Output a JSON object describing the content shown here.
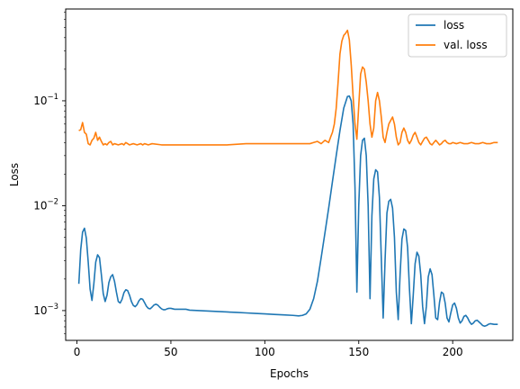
{
  "chart_data": {
    "type": "line",
    "xlabel": "Epochs",
    "ylabel": "Loss",
    "yscale": "log",
    "xlim": [
      -6,
      232
    ],
    "ylim": [
      0.00052,
      0.75
    ],
    "x_ticks": [
      0,
      50,
      100,
      150,
      200
    ],
    "y_ticks": [
      {
        "value": 0.001,
        "base": "10",
        "exp": "−3"
      },
      {
        "value": 0.01,
        "base": "10",
        "exp": "−2"
      },
      {
        "value": 0.1,
        "base": "10",
        "exp": "−1"
      }
    ],
    "grid": false,
    "legend_position": "upper right",
    "series": [
      {
        "name": "loss",
        "color": "#1f77b4",
        "points": [
          [
            1,
            0.0018
          ],
          [
            2,
            0.0038
          ],
          [
            3,
            0.0056
          ],
          [
            4,
            0.0061
          ],
          [
            5,
            0.0049
          ],
          [
            6,
            0.0029
          ],
          [
            7,
            0.0016
          ],
          [
            8,
            0.00125
          ],
          [
            9,
            0.0018
          ],
          [
            10,
            0.0029
          ],
          [
            11,
            0.0034
          ],
          [
            12,
            0.0032
          ],
          [
            13,
            0.0022
          ],
          [
            14,
            0.00145
          ],
          [
            15,
            0.00122
          ],
          [
            16,
            0.0014
          ],
          [
            17,
            0.00185
          ],
          [
            18,
            0.0021
          ],
          [
            19,
            0.0022
          ],
          [
            20,
            0.0019
          ],
          [
            21,
            0.0015
          ],
          [
            22,
            0.00122
          ],
          [
            23,
            0.00118
          ],
          [
            24,
            0.00128
          ],
          [
            25,
            0.00148
          ],
          [
            26,
            0.00158
          ],
          [
            27,
            0.00155
          ],
          [
            28,
            0.0014
          ],
          [
            29,
            0.00122
          ],
          [
            30,
            0.00112
          ],
          [
            31,
            0.00109
          ],
          [
            32,
            0.00114
          ],
          [
            33,
            0.00124
          ],
          [
            34,
            0.0013
          ],
          [
            35,
            0.00128
          ],
          [
            36,
            0.00119
          ],
          [
            37,
            0.0011
          ],
          [
            38,
            0.00105
          ],
          [
            39,
            0.00104
          ],
          [
            40,
            0.00108
          ],
          [
            41,
            0.00113
          ],
          [
            42,
            0.00115
          ],
          [
            43,
            0.00113
          ],
          [
            44,
            0.00108
          ],
          [
            45,
            0.00104
          ],
          [
            46,
            0.00102
          ],
          [
            47,
            0.00102
          ],
          [
            48,
            0.00104
          ],
          [
            49,
            0.00105
          ],
          [
            50,
            0.00105
          ],
          [
            52,
            0.00103
          ],
          [
            55,
            0.00103
          ],
          [
            58,
            0.00103
          ],
          [
            60,
            0.00101
          ],
          [
            65,
            0.001
          ],
          [
            70,
            0.00099
          ],
          [
            75,
            0.00098
          ],
          [
            80,
            0.00097
          ],
          [
            85,
            0.00096
          ],
          [
            90,
            0.00095
          ],
          [
            95,
            0.00094
          ],
          [
            100,
            0.00093
          ],
          [
            105,
            0.00092
          ],
          [
            110,
            0.00091
          ],
          [
            115,
            0.0009
          ],
          [
            118,
            0.00089
          ],
          [
            120,
            0.0009
          ],
          [
            122,
            0.00093
          ],
          [
            124,
            0.00103
          ],
          [
            126,
            0.0013
          ],
          [
            128,
            0.0019
          ],
          [
            130,
            0.0032
          ],
          [
            132,
            0.0055
          ],
          [
            134,
            0.0095
          ],
          [
            136,
            0.017
          ],
          [
            138,
            0.03
          ],
          [
            140,
            0.052
          ],
          [
            142,
            0.085
          ],
          [
            144,
            0.11
          ],
          [
            145,
            0.111
          ],
          [
            146,
            0.1
          ],
          [
            147,
            0.06
          ],
          [
            148,
            0.015
          ],
          [
            149,
            0.0015
          ],
          [
            150,
            0.01
          ],
          [
            151,
            0.03
          ],
          [
            152,
            0.042
          ],
          [
            153,
            0.044
          ],
          [
            154,
            0.03
          ],
          [
            155,
            0.01
          ],
          [
            156,
            0.0013
          ],
          [
            157,
            0.008
          ],
          [
            158,
            0.018
          ],
          [
            159,
            0.022
          ],
          [
            160,
            0.021
          ],
          [
            161,
            0.012
          ],
          [
            162,
            0.0032
          ],
          [
            163,
            0.00085
          ],
          [
            164,
            0.003
          ],
          [
            165,
            0.0085
          ],
          [
            166,
            0.011
          ],
          [
            167,
            0.0115
          ],
          [
            168,
            0.0095
          ],
          [
            169,
            0.005
          ],
          [
            170,
            0.0015
          ],
          [
            171,
            0.00082
          ],
          [
            172,
            0.0022
          ],
          [
            173,
            0.0048
          ],
          [
            174,
            0.006
          ],
          [
            175,
            0.0058
          ],
          [
            176,
            0.004
          ],
          [
            177,
            0.0016
          ],
          [
            178,
            0.00075
          ],
          [
            179,
            0.0014
          ],
          [
            180,
            0.0028
          ],
          [
            181,
            0.0036
          ],
          [
            182,
            0.0033
          ],
          [
            183,
            0.0022
          ],
          [
            184,
            0.0011
          ],
          [
            185,
            0.00075
          ],
          [
            186,
            0.0011
          ],
          [
            187,
            0.0021
          ],
          [
            188,
            0.0025
          ],
          [
            189,
            0.0022
          ],
          [
            190,
            0.0014
          ],
          [
            191,
            0.00085
          ],
          [
            192,
            0.00082
          ],
          [
            193,
            0.0012
          ],
          [
            194,
            0.0015
          ],
          [
            195,
            0.00145
          ],
          [
            196,
            0.00118
          ],
          [
            197,
            0.00085
          ],
          [
            198,
            0.00078
          ],
          [
            199,
            0.00095
          ],
          [
            200,
            0.00113
          ],
          [
            201,
            0.00118
          ],
          [
            202,
            0.00105
          ],
          [
            203,
            0.00085
          ],
          [
            204,
            0.00076
          ],
          [
            205,
            0.0008
          ],
          [
            206,
            0.00088
          ],
          [
            207,
            0.0009
          ],
          [
            208,
            0.00085
          ],
          [
            209,
            0.00078
          ],
          [
            210,
            0.00074
          ],
          [
            211,
            0.00076
          ],
          [
            212,
            0.0008
          ],
          [
            213,
            0.00081
          ],
          [
            214,
            0.00078
          ],
          [
            215,
            0.00075
          ],
          [
            216,
            0.00072
          ],
          [
            217,
            0.00071
          ],
          [
            218,
            0.00072
          ],
          [
            219,
            0.00074
          ],
          [
            220,
            0.00075
          ],
          [
            222,
            0.00074
          ],
          [
            224,
            0.00074
          ]
        ]
      },
      {
        "name": "val. loss",
        "color": "#ff7f0e",
        "points": [
          [
            1,
            0.052
          ],
          [
            2,
            0.053
          ],
          [
            3,
            0.062
          ],
          [
            4,
            0.05
          ],
          [
            5,
            0.048
          ],
          [
            6,
            0.039
          ],
          [
            7,
            0.038
          ],
          [
            8,
            0.042
          ],
          [
            9,
            0.044
          ],
          [
            10,
            0.05
          ],
          [
            11,
            0.042
          ],
          [
            12,
            0.045
          ],
          [
            13,
            0.041
          ],
          [
            14,
            0.038
          ],
          [
            15,
            0.039
          ],
          [
            16,
            0.038
          ],
          [
            17,
            0.04
          ],
          [
            18,
            0.041
          ],
          [
            19,
            0.038
          ],
          [
            20,
            0.039
          ],
          [
            22,
            0.038
          ],
          [
            24,
            0.039
          ],
          [
            25,
            0.038
          ],
          [
            26,
            0.04
          ],
          [
            27,
            0.039
          ],
          [
            28,
            0.038
          ],
          [
            30,
            0.039
          ],
          [
            32,
            0.038
          ],
          [
            34,
            0.039
          ],
          [
            35,
            0.038
          ],
          [
            36,
            0.039
          ],
          [
            38,
            0.038
          ],
          [
            40,
            0.039
          ],
          [
            45,
            0.038
          ],
          [
            50,
            0.038
          ],
          [
            60,
            0.038
          ],
          [
            70,
            0.038
          ],
          [
            80,
            0.038
          ],
          [
            90,
            0.039
          ],
          [
            100,
            0.039
          ],
          [
            110,
            0.039
          ],
          [
            120,
            0.039
          ],
          [
            124,
            0.039
          ],
          [
            126,
            0.04
          ],
          [
            128,
            0.041
          ],
          [
            130,
            0.039
          ],
          [
            132,
            0.042
          ],
          [
            134,
            0.04
          ],
          [
            135,
            0.045
          ],
          [
            136,
            0.05
          ],
          [
            137,
            0.06
          ],
          [
            138,
            0.085
          ],
          [
            139,
            0.15
          ],
          [
            140,
            0.28
          ],
          [
            141,
            0.37
          ],
          [
            142,
            0.42
          ],
          [
            143,
            0.44
          ],
          [
            144,
            0.47
          ],
          [
            145,
            0.38
          ],
          [
            146,
            0.22
          ],
          [
            147,
            0.11
          ],
          [
            148,
            0.06
          ],
          [
            149,
            0.043
          ],
          [
            150,
            0.09
          ],
          [
            151,
            0.18
          ],
          [
            152,
            0.21
          ],
          [
            153,
            0.2
          ],
          [
            154,
            0.15
          ],
          [
            155,
            0.1
          ],
          [
            156,
            0.06
          ],
          [
            157,
            0.045
          ],
          [
            158,
            0.055
          ],
          [
            159,
            0.1
          ],
          [
            160,
            0.12
          ],
          [
            161,
            0.1
          ],
          [
            162,
            0.07
          ],
          [
            163,
            0.045
          ],
          [
            164,
            0.04
          ],
          [
            165,
            0.05
          ],
          [
            166,
            0.06
          ],
          [
            167,
            0.065
          ],
          [
            168,
            0.07
          ],
          [
            169,
            0.06
          ],
          [
            170,
            0.045
          ],
          [
            171,
            0.038
          ],
          [
            172,
            0.04
          ],
          [
            173,
            0.05
          ],
          [
            174,
            0.055
          ],
          [
            175,
            0.05
          ],
          [
            176,
            0.042
          ],
          [
            177,
            0.039
          ],
          [
            178,
            0.042
          ],
          [
            179,
            0.047
          ],
          [
            180,
            0.05
          ],
          [
            181,
            0.045
          ],
          [
            182,
            0.04
          ],
          [
            183,
            0.038
          ],
          [
            184,
            0.041
          ],
          [
            185,
            0.044
          ],
          [
            186,
            0.045
          ],
          [
            187,
            0.042
          ],
          [
            188,
            0.039
          ],
          [
            189,
            0.038
          ],
          [
            190,
            0.04
          ],
          [
            191,
            0.042
          ],
          [
            192,
            0.04
          ],
          [
            193,
            0.038
          ],
          [
            194,
            0.039
          ],
          [
            195,
            0.041
          ],
          [
            196,
            0.042
          ],
          [
            197,
            0.04
          ],
          [
            198,
            0.039
          ],
          [
            199,
            0.039
          ],
          [
            200,
            0.04
          ],
          [
            202,
            0.039
          ],
          [
            204,
            0.04
          ],
          [
            206,
            0.039
          ],
          [
            208,
            0.039
          ],
          [
            210,
            0.04
          ],
          [
            212,
            0.039
          ],
          [
            214,
            0.039
          ],
          [
            216,
            0.04
          ],
          [
            218,
            0.039
          ],
          [
            220,
            0.039
          ],
          [
            222,
            0.04
          ],
          [
            224,
            0.04
          ]
        ]
      }
    ]
  }
}
